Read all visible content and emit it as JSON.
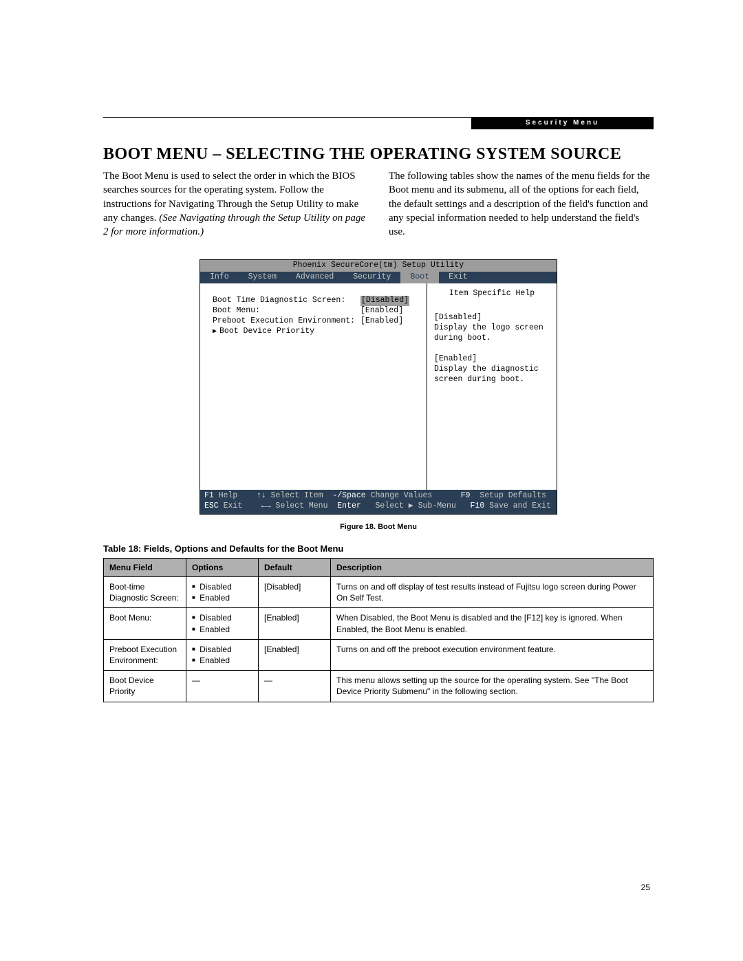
{
  "header_label": "Security Menu",
  "heading": "BOOT MENU – SELECTING THE OPERATING SYSTEM SOURCE",
  "intro_left_1": "The Boot Menu is used to select the order in which the BIOS searches sources for the operating system. Follow the instructions for Navigating Through the Setup Utility to make any changes. ",
  "intro_left_italic": "(See Navigating through the Setup Utility on page 2 for more information.)",
  "intro_right": "The following tables show the names of the menu fields for the Boot menu and its submenu, all of the options for each field, the default settings and a description of the field's function and any special information needed to help understand the field's use.",
  "bios": {
    "title": "Phoenix SecureCore(tm) Setup Utility",
    "tabs": [
      "Info",
      "System",
      "Advanced",
      "Security",
      "Boot",
      "Exit"
    ],
    "active_tab": "Boot",
    "rows": [
      {
        "label": "Boot Time Diagnostic Screen:",
        "value": "[Disabled]",
        "selected": true
      },
      {
        "label": "Boot Menu:",
        "value": "[Enabled]",
        "selected": false
      },
      {
        "label": "Preboot Execution Environment:",
        "value": "[Enabled]",
        "selected": false
      }
    ],
    "submenu": "Boot Device Priority",
    "help_title": "Item Specific Help",
    "help_lines": [
      "[Disabled]",
      "Display the logo screen",
      "during boot.",
      "",
      "[Enabled]",
      "Display the diagnostic",
      "screen during boot."
    ],
    "footer": {
      "r1": [
        {
          "k": "F1",
          "t": " Help    "
        },
        {
          "k": "↑↓",
          "t": " Select Item  "
        },
        {
          "k": "-/Space",
          "t": " Change Values      "
        },
        {
          "k": "F9",
          "t": "  Setup Defaults"
        }
      ],
      "r2": [
        {
          "k": "ESC",
          "t": " Exit    "
        },
        {
          "k": "←→",
          "t": " Select Menu  "
        },
        {
          "k": "Enter",
          "t": "   Select ▶ Sub-Menu   "
        },
        {
          "k": "F10",
          "t": " Save and Exit"
        }
      ]
    }
  },
  "figure_caption": "Figure 18.  Boot Menu",
  "table_title": "Table 18: Fields, Options and Defaults for the Boot Menu",
  "table_headers": [
    "Menu Field",
    "Options",
    "Default",
    "Description"
  ],
  "table_rows": [
    {
      "field": "Boot-time Diagnostic Screen:",
      "options": [
        "Disabled",
        "Enabled"
      ],
      "default": "[Disabled]",
      "desc": "Turns on and off display of test results instead of Fujitsu logo screen during Power On Self Test."
    },
    {
      "field": "Boot Menu:",
      "options": [
        "Disabled",
        "Enabled"
      ],
      "default": "[Enabled]",
      "desc": "When Disabled, the Boot Menu is disabled and the [F12] key is ignored. When Enabled, the Boot Menu is enabled."
    },
    {
      "field": "Preboot Execution Environment:",
      "options": [
        "Disabled",
        "Enabled"
      ],
      "default": "[Enabled]",
      "desc": "Turns on and off the preboot execution environment feature."
    },
    {
      "field": "Boot Device Priority",
      "options": [],
      "default": "—",
      "desc": "This menu allows setting up the source for the operating system. See \"The Boot Device Priority Submenu\" in the following section."
    }
  ],
  "page_number": "25"
}
